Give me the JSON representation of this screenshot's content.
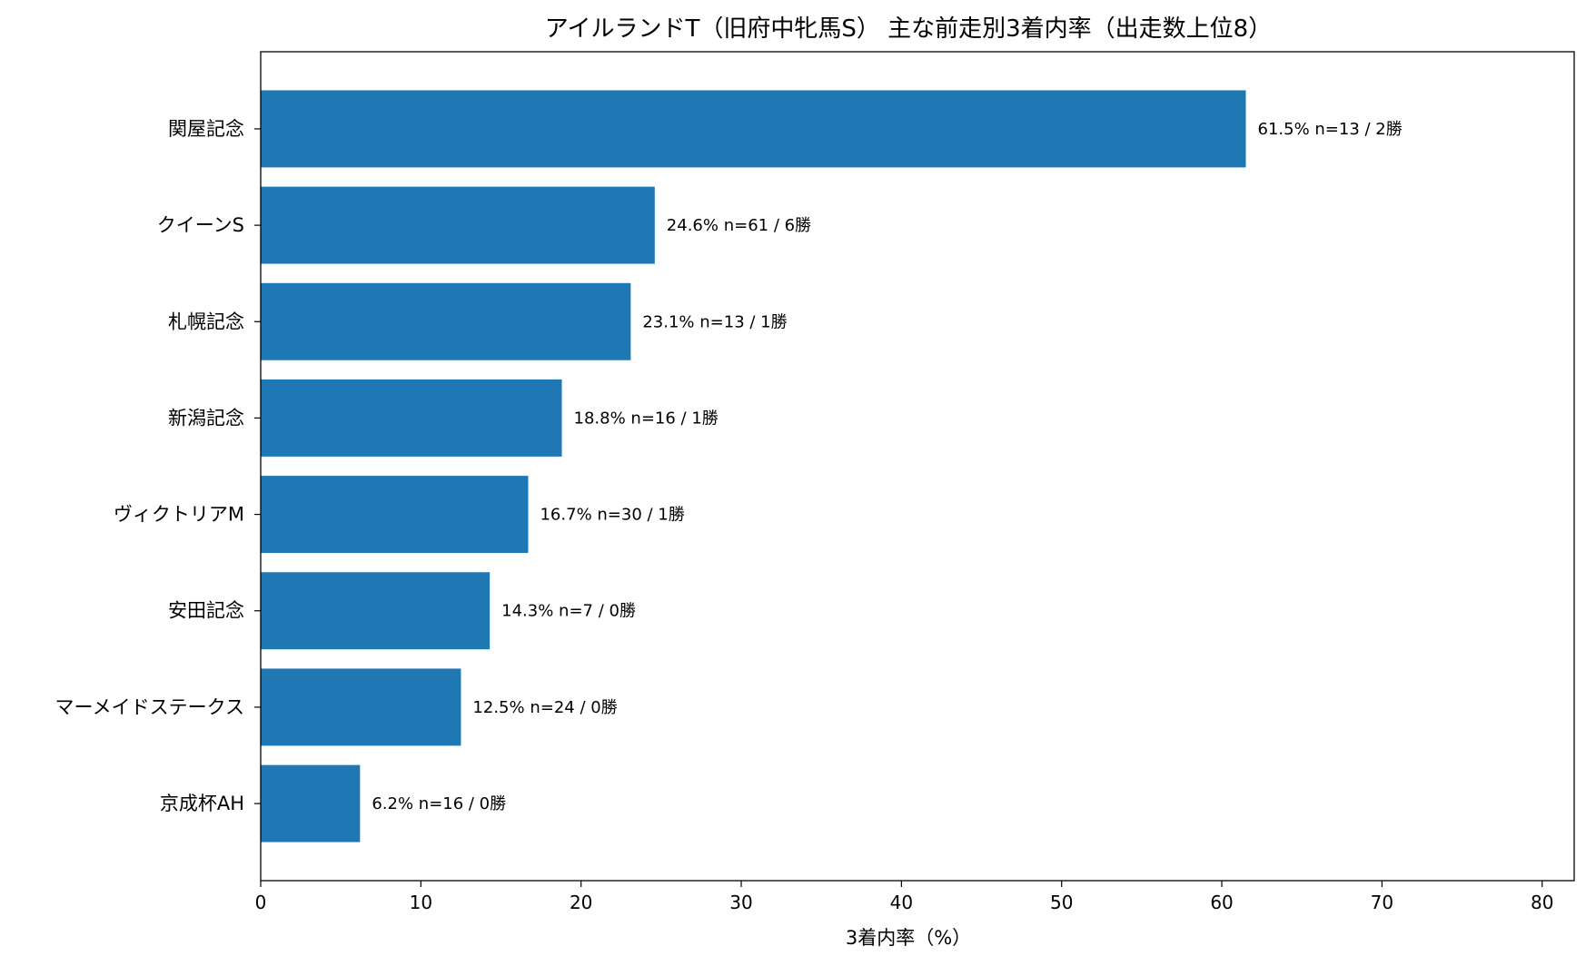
{
  "chart_data": {
    "type": "bar",
    "orientation": "horizontal",
    "title": "アイルランドT（旧府中牝馬S） 主な前走別3着内率（出走数上位8）",
    "xlabel": "3着内率（%）",
    "ylabel": "",
    "xlim": [
      0,
      82
    ],
    "xticks": [
      0,
      10,
      20,
      30,
      40,
      50,
      60,
      70,
      80
    ],
    "grid": false,
    "legend": "none",
    "bar_color": "#1f77b4",
    "categories": [
      "関屋記念",
      "クイーンS",
      "札幌記念",
      "新潟記念",
      "ヴィクトリアM",
      "安田記念",
      "マーメイドステークス",
      "京成杯AH"
    ],
    "values": [
      61.5,
      24.6,
      23.1,
      18.8,
      16.7,
      14.3,
      12.5,
      6.2
    ],
    "data_labels": [
      "61.5%  n=13 / 2勝",
      "24.6%  n=61 / 6勝",
      "23.1%  n=13 / 1勝",
      "18.8%  n=16 / 1勝",
      "16.7%  n=30 / 1勝",
      "14.3%  n=7 / 0勝",
      "12.5%  n=24 / 0勝",
      "6.2%  n=16 / 0勝"
    ]
  }
}
